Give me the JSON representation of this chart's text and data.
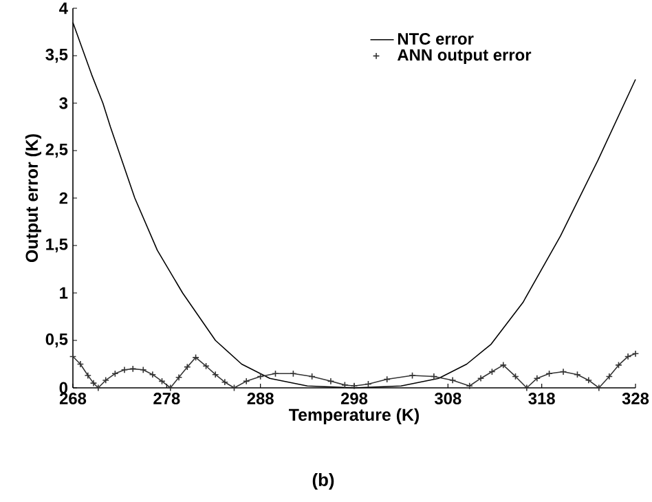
{
  "chart_data": {
    "type": "line",
    "xlabel": "Temperature (K)",
    "ylabel": "Output error (K)",
    "xlim": [
      268,
      328
    ],
    "xticks": [
      268,
      278,
      288,
      298,
      308,
      318,
      328
    ],
    "ylim": [
      0,
      4
    ],
    "yticks": [
      0,
      {
        "value": 0.5,
        "label": "0,5"
      },
      1,
      {
        "value": 1.5,
        "label": "1,5"
      },
      2,
      {
        "value": 2.5,
        "label": "2,5"
      },
      3,
      {
        "value": 3.5,
        "label": "3,5"
      },
      4
    ],
    "legend": "top right",
    "grid": false,
    "annotations": [
      "(b)"
    ],
    "series": [
      {
        "name": "NTC error",
        "color": "#000000",
        "marker": "none",
        "x": [
          268,
          270,
          271.2,
          272,
          274.6,
          277,
          279.7,
          283.2,
          286,
          289,
          293,
          298,
          303,
          307,
          310,
          312.6,
          316,
          320,
          324,
          328
        ],
        "values": [
          3.85,
          3.3,
          3.0,
          2.75,
          2.0,
          1.45,
          1.0,
          0.5,
          0.25,
          0.1,
          0.02,
          0,
          0.02,
          0.1,
          0.25,
          0.46,
          0.9,
          1.6,
          2.4,
          3.25
        ]
      },
      {
        "name": "ANN output error",
        "color": "#333333",
        "marker": "cross",
        "x": [
          268,
          268.8,
          269.6,
          270.2,
          270.7,
          271.5,
          272.5,
          273.5,
          274.4,
          275.5,
          276.5,
          277.5,
          278.4,
          279.3,
          280.2,
          281.1,
          282.2,
          283.2,
          284.2,
          285.2,
          286.5,
          288,
          289.6,
          291.5,
          293.5,
          295.5,
          297,
          298,
          299.5,
          301.5,
          304.2,
          306.5,
          308.5,
          310.3,
          311.5,
          312.7,
          313.9,
          315.2,
          316.4,
          317.5,
          318.8,
          320.3,
          321.8,
          323,
          324.1,
          325.2,
          326.2,
          327.2,
          328
        ],
        "values": [
          0.33,
          0.25,
          0.13,
          0.05,
          0,
          0.08,
          0.15,
          0.19,
          0.2,
          0.19,
          0.14,
          0.07,
          0,
          0.11,
          0.22,
          0.32,
          0.23,
          0.14,
          0.06,
          0,
          0.07,
          0.12,
          0.15,
          0.15,
          0.12,
          0.07,
          0.03,
          0.02,
          0.04,
          0.09,
          0.13,
          0.12,
          0.08,
          0.02,
          0.1,
          0.17,
          0.24,
          0.12,
          0,
          0.1,
          0.15,
          0.17,
          0.14,
          0.08,
          0,
          0.12,
          0.24,
          0.33,
          0.36
        ]
      }
    ]
  }
}
